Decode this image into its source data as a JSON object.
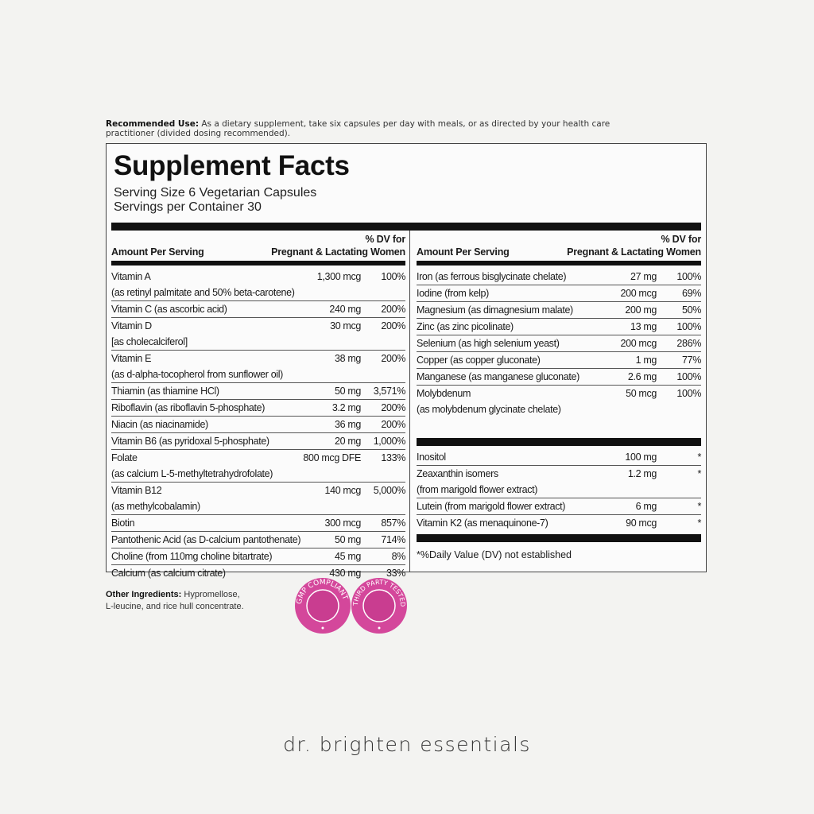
{
  "recommended_use": {
    "label": "Recommended Use:",
    "text": " As a dietary supplement, take six capsules per day with meals, or as directed by your health care practitioner (divided dosing recommended)."
  },
  "facts": {
    "title": "Supplement Facts",
    "serving_size": "Serving Size 6 Vegetarian Capsules",
    "servings_per_container": "Servings per Container 30",
    "header": {
      "dv_for": "% DV for",
      "amount_per_serving": "Amount Per Serving",
      "pregnant_lactating": "Pregnant & Lactating Women"
    },
    "left_rows": [
      {
        "name": "Vitamin A",
        "sub": "(as retinyl palmitate and 50% beta-carotene)",
        "amount": "1,300 mcg",
        "dv": "100%"
      },
      {
        "name": "Vitamin C (as ascorbic acid)",
        "amount": "240 mg",
        "dv": "200%"
      },
      {
        "name": "Vitamin D",
        "sub": "[as cholecalciferol]",
        "amount": "30 mcg",
        "dv": "200%"
      },
      {
        "name": "Vitamin E",
        "sub": "(as d-alpha-tocopherol from sunflower oil)",
        "amount": "38 mg",
        "dv": "200%"
      },
      {
        "name": "Thiamin (as thiamine HCl)",
        "amount": "50 mg",
        "dv": "3,571%"
      },
      {
        "name": "Riboflavin (as riboflavin 5-phosphate)",
        "amount": "3.2 mg",
        "dv": "200%"
      },
      {
        "name": "Niacin (as niacinamide)",
        "amount": "36 mg",
        "dv": "200%"
      },
      {
        "name": "Vitamin B6 (as pyridoxal 5-phosphate)",
        "amount": "20 mg",
        "dv": "1,000%"
      },
      {
        "name": "Folate",
        "sub": "(as calcium L-5-methyltetrahydrofolate)",
        "amount": "800 mcg DFE",
        "dv": "133%"
      },
      {
        "name": "Vitamin B12",
        "sub": "(as methylcobalamin)",
        "amount": "140 mcg",
        "dv": "5,000%"
      },
      {
        "name": "Biotin",
        "amount": "300 mcg",
        "dv": "857%"
      },
      {
        "name": "Pantothenic Acid (as D-calcium pantothenate)",
        "amount": "50 mg",
        "dv": "714%"
      },
      {
        "name": "Choline (from 110mg choline bitartrate)",
        "amount": "45 mg",
        "dv": "8%"
      },
      {
        "name": "Calcium (as calcium citrate)",
        "amount": "430 mg",
        "dv": "33%"
      }
    ],
    "right_rows": [
      {
        "name": "Iron (as ferrous bisglycinate chelate)",
        "amount": "27 mg",
        "dv": "100%"
      },
      {
        "name": "Iodine (from kelp)",
        "amount": "200 mcg",
        "dv": "69%"
      },
      {
        "name": "Magnesium (as dimagnesium malate)",
        "amount": "200 mg",
        "dv": "50%"
      },
      {
        "name": "Zinc (as zinc picolinate)",
        "amount": "13 mg",
        "dv": "100%"
      },
      {
        "name": "Selenium (as high selenium yeast)",
        "amount": "200 mcg",
        "dv": "286%"
      },
      {
        "name": "Copper (as copper gluconate)",
        "amount": "1 mg",
        "dv": "77%"
      },
      {
        "name": "Manganese (as manganese gluconate)",
        "amount": "2.6 mg",
        "dv": "100%"
      },
      {
        "name": "Molybdenum",
        "sub": "(as molybdenum glycinate chelate)",
        "amount": "50 mcg",
        "dv": "100%"
      }
    ],
    "other_rows": [
      {
        "name": "Inositol",
        "amount": "100 mg",
        "dv": "*"
      },
      {
        "name": "Zeaxanthin isomers",
        "sub": "(from marigold flower extract)",
        "amount": "1.2 mg",
        "dv": "*"
      },
      {
        "name": "Lutein (from marigold flower extract)",
        "amount": "6 mg",
        "dv": "*"
      },
      {
        "name": "Vitamin K2 (as menaquinone-7)",
        "amount": "90 mcg",
        "dv": "*"
      }
    ],
    "footnote": "*%Daily Value (DV) not established"
  },
  "other_ingredients": {
    "label": "Other Ingredients:",
    "line1": " Hypromellose,",
    "line2": "L-leucine, and rice hull concentrate."
  },
  "badges": [
    {
      "text": "GMP COMPLIANT"
    },
    {
      "text": "THIRD PARTY TESTED"
    }
  ],
  "badge_color": "#d4479b",
  "brand": "dr. brighten essentials"
}
